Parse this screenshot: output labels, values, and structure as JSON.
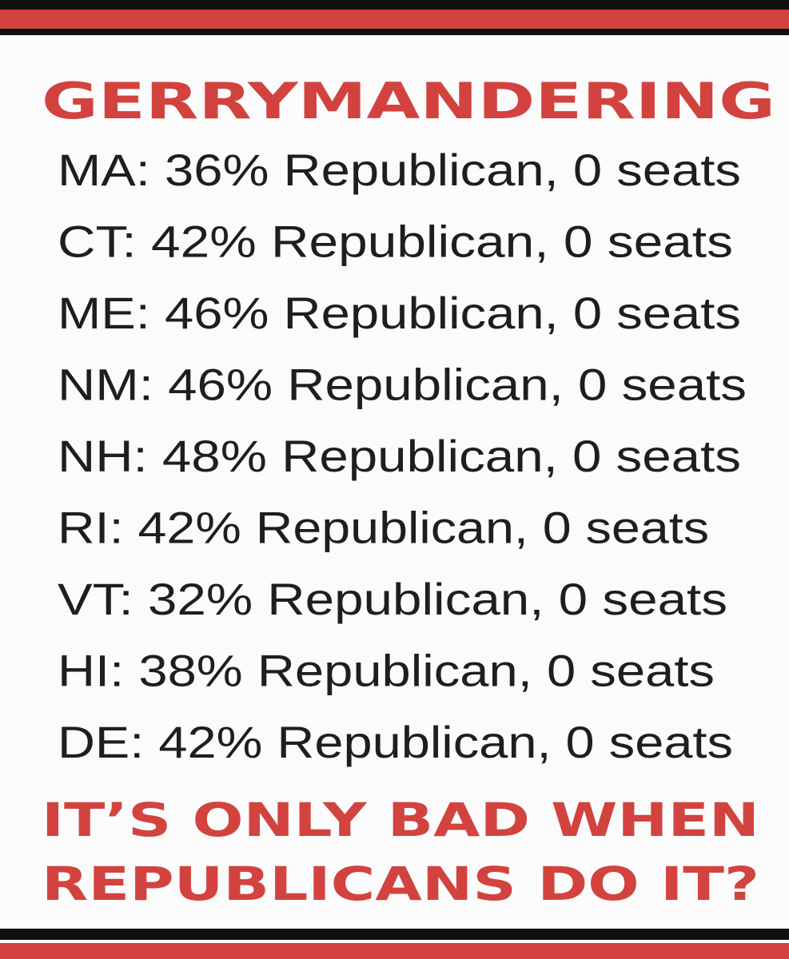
{
  "title": "GERRYMANDERING",
  "rows": [
    "MA: 36% Republican, 0 seats",
    "CT: 42% Republican, 0 seats",
    "ME: 46% Republican, 0 seats",
    "NM: 46% Republican, 0 seats",
    "NH: 48% Republican, 0 seats",
    "RI: 42% Republican, 0 seats",
    "VT: 32% Republican, 0 seats",
    "HI: 38% Republican, 0 seats",
    "DE: 42% Republican, 0 seats"
  ],
  "footer": [
    "IT’S ONLY BAD WHEN",
    "REPUBLICANS DO IT?"
  ]
}
